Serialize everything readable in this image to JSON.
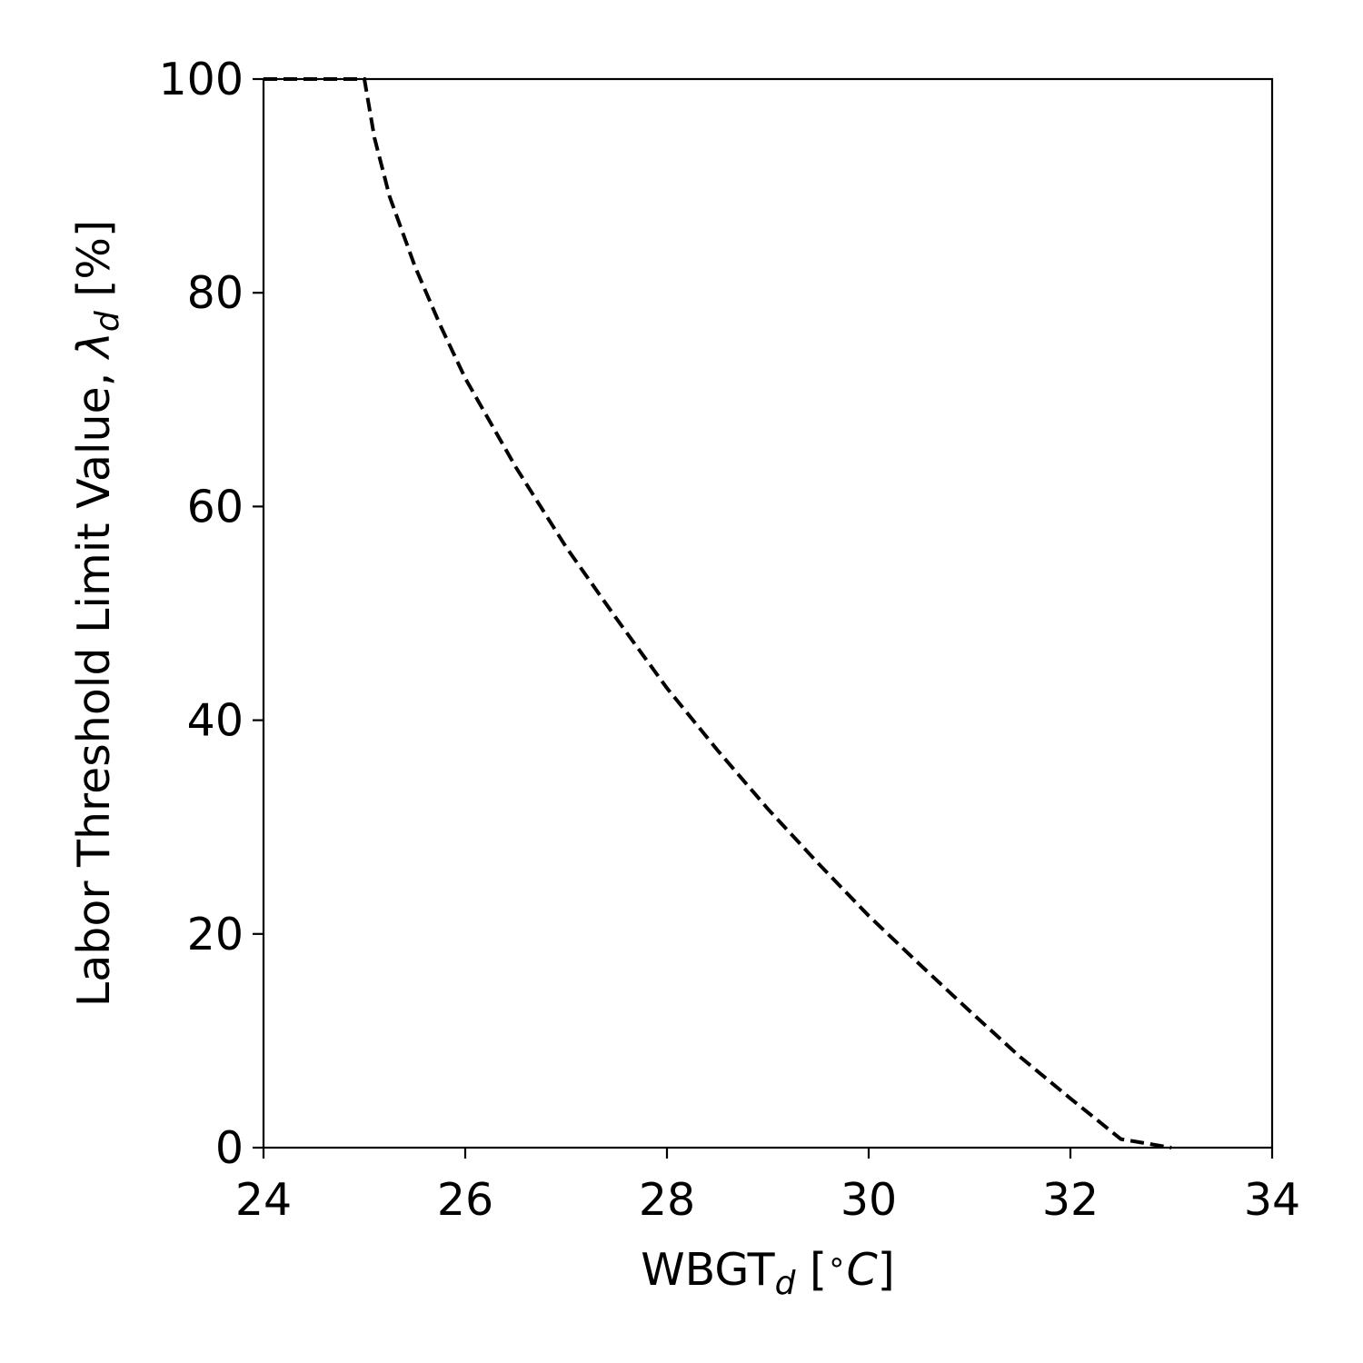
{
  "chart_data": {
    "type": "line",
    "xlabel": {
      "main": "WBGT",
      "sub": "d",
      "open": " [",
      "degree": "∘",
      "unit": "C",
      "close": "]"
    },
    "ylabel": {
      "main": "Labor Threshold Limit Value, ",
      "symbol": "λ",
      "sub": "d",
      "unit": " [%]"
    },
    "xlim": [
      24,
      34
    ],
    "ylim": [
      0,
      100
    ],
    "xticks": [
      "24",
      "26",
      "28",
      "30",
      "32",
      "34"
    ],
    "yticks": [
      "0",
      "20",
      "40",
      "60",
      "80",
      "100"
    ],
    "grid": false,
    "legend": false,
    "series": [
      {
        "line_style": "dashed",
        "color": "#000000",
        "x": [
          24.0,
          25.0,
          25.1,
          25.25,
          25.5,
          25.75,
          26.0,
          26.5,
          27.0,
          27.5,
          28.0,
          28.5,
          29.0,
          29.5,
          30.0,
          30.5,
          31.0,
          31.5,
          32.0,
          32.5,
          33.0
        ],
        "y": [
          100,
          100,
          94.5,
          89,
          82.5,
          77,
          72,
          63.7,
          56.2,
          49.5,
          43.0,
          37.2,
          31.7,
          26.6,
          21.7,
          17.2,
          12.8,
          8.5,
          4.6,
          0.8,
          0
        ]
      }
    ]
  }
}
